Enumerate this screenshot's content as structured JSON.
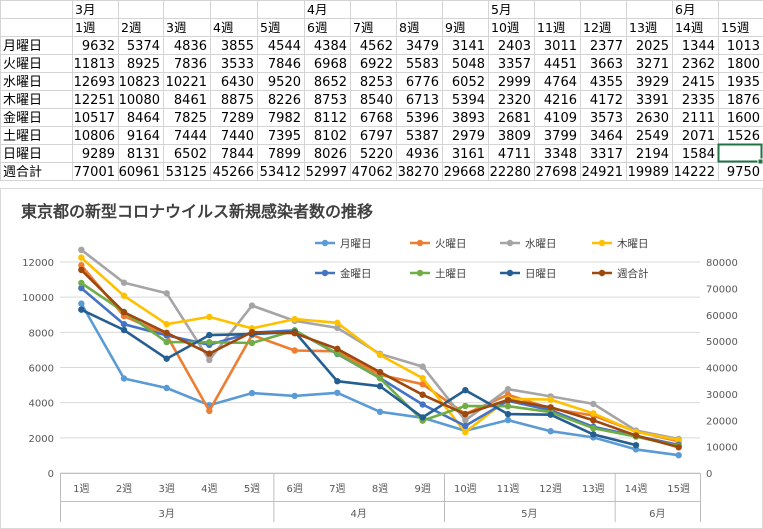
{
  "sheet": {
    "months": [
      "3月",
      "4月",
      "5月",
      "6月"
    ],
    "weeks": [
      "1週",
      "2週",
      "3週",
      "4週",
      "5週",
      "6週",
      "7週",
      "8週",
      "9週",
      "10週",
      "11週",
      "12週",
      "13週",
      "14週",
      "15週"
    ],
    "rows": [
      {
        "label": "月曜日",
        "values": [
          9632,
          5374,
          4836,
          3855,
          4544,
          4384,
          4562,
          3479,
          3141,
          2403,
          3011,
          2377,
          2025,
          1344,
          1013
        ]
      },
      {
        "label": "火曜日",
        "values": [
          11813,
          8925,
          7836,
          3533,
          7846,
          6968,
          6922,
          5583,
          5048,
          3357,
          4451,
          3663,
          3271,
          2362,
          1800
        ]
      },
      {
        "label": "水曜日",
        "values": [
          12693,
          10823,
          10221,
          6430,
          9520,
          8652,
          8253,
          6776,
          6052,
          2999,
          4764,
          4355,
          3929,
          2415,
          1935
        ]
      },
      {
        "label": "木曜日",
        "values": [
          12251,
          10080,
          8461,
          8875,
          8226,
          8753,
          8540,
          6713,
          5394,
          2320,
          4216,
          4172,
          3391,
          2335,
          1876
        ]
      },
      {
        "label": "金曜日",
        "values": [
          10517,
          8464,
          7825,
          7289,
          7982,
          8112,
          6768,
          5396,
          3893,
          2681,
          4109,
          3573,
          2630,
          2111,
          1600
        ]
      },
      {
        "label": "土曜日",
        "values": [
          10806,
          9164,
          7444,
          7440,
          7395,
          8102,
          6797,
          5387,
          2979,
          3809,
          3799,
          3464,
          2549,
          2071,
          1526
        ]
      },
      {
        "label": "日曜日",
        "values": [
          9289,
          8131,
          6502,
          7844,
          7899,
          8026,
          5220,
          4936,
          3161,
          4711,
          3348,
          3317,
          2194,
          1584,
          ""
        ]
      },
      {
        "label": "週合計",
        "values": [
          77001,
          60961,
          53125,
          45266,
          53412,
          52997,
          47062,
          38270,
          29668,
          22280,
          27698,
          24921,
          19989,
          14222,
          9750
        ]
      }
    ]
  },
  "chart_data": {
    "type": "line",
    "title": "東京都の新型コロナウイルス新規感染者数の推移",
    "categories": [
      "1週",
      "2週",
      "3週",
      "4週",
      "5週",
      "6週",
      "7週",
      "8週",
      "9週",
      "10週",
      "11週",
      "12週",
      "13週",
      "14週",
      "15週"
    ],
    "category_groups": [
      {
        "label": "3月",
        "weeks": 5
      },
      {
        "label": "4月",
        "weeks": 4
      },
      {
        "label": "5月",
        "weeks": 4
      },
      {
        "label": "6月",
        "weeks": 2
      }
    ],
    "y_left": {
      "min": 0,
      "max": 12000,
      "step": 2000,
      "ticks": [
        "0",
        "2000",
        "4000",
        "6000",
        "8000",
        "10000",
        "12000"
      ]
    },
    "y_right": {
      "min": 0,
      "max": 80000,
      "step": 10000,
      "ticks": [
        "0",
        "10000",
        "20000",
        "30000",
        "40000",
        "50000",
        "60000",
        "70000",
        "80000"
      ]
    },
    "legend_position": "top-right",
    "grid": true,
    "series": [
      {
        "name": "月曜日",
        "axis": "left",
        "color": "#5b9bd5",
        "values": [
          9632,
          5374,
          4836,
          3855,
          4544,
          4384,
          4562,
          3479,
          3141,
          2403,
          3011,
          2377,
          2025,
          1344,
          1013
        ]
      },
      {
        "name": "火曜日",
        "axis": "left",
        "color": "#ed7d31",
        "values": [
          11813,
          8925,
          7836,
          3533,
          7846,
          6968,
          6922,
          5583,
          5048,
          3357,
          4451,
          3663,
          3271,
          2362,
          1800
        ]
      },
      {
        "name": "水曜日",
        "axis": "left",
        "color": "#a5a5a5",
        "values": [
          12693,
          10823,
          10221,
          6430,
          9520,
          8652,
          8253,
          6776,
          6052,
          2999,
          4764,
          4355,
          3929,
          2415,
          1935
        ]
      },
      {
        "name": "木曜日",
        "axis": "left",
        "color": "#ffc000",
        "values": [
          12251,
          10080,
          8461,
          8875,
          8226,
          8753,
          8540,
          6713,
          5394,
          2320,
          4216,
          4172,
          3391,
          2335,
          1876
        ]
      },
      {
        "name": "金曜日",
        "axis": "left",
        "color": "#4472c4",
        "values": [
          10517,
          8464,
          7825,
          7289,
          7982,
          8112,
          6768,
          5396,
          3893,
          2681,
          4109,
          3573,
          2630,
          2111,
          1600
        ]
      },
      {
        "name": "土曜日",
        "axis": "left",
        "color": "#70ad47",
        "values": [
          10806,
          9164,
          7444,
          7440,
          7395,
          8102,
          6797,
          5387,
          2979,
          3809,
          3799,
          3464,
          2549,
          2071,
          1526
        ]
      },
      {
        "name": "日曜日",
        "axis": "left",
        "color": "#255e91",
        "values": [
          9289,
          8131,
          6502,
          7844,
          7899,
          8026,
          5220,
          4936,
          3161,
          4711,
          3348,
          3317,
          2194,
          1584,
          null
        ]
      },
      {
        "name": "週合計",
        "axis": "right",
        "color": "#9e480e",
        "values": [
          77001,
          60961,
          53125,
          45266,
          53412,
          52997,
          47062,
          38270,
          29668,
          22280,
          27698,
          24921,
          19989,
          14222,
          9750
        ]
      }
    ]
  }
}
